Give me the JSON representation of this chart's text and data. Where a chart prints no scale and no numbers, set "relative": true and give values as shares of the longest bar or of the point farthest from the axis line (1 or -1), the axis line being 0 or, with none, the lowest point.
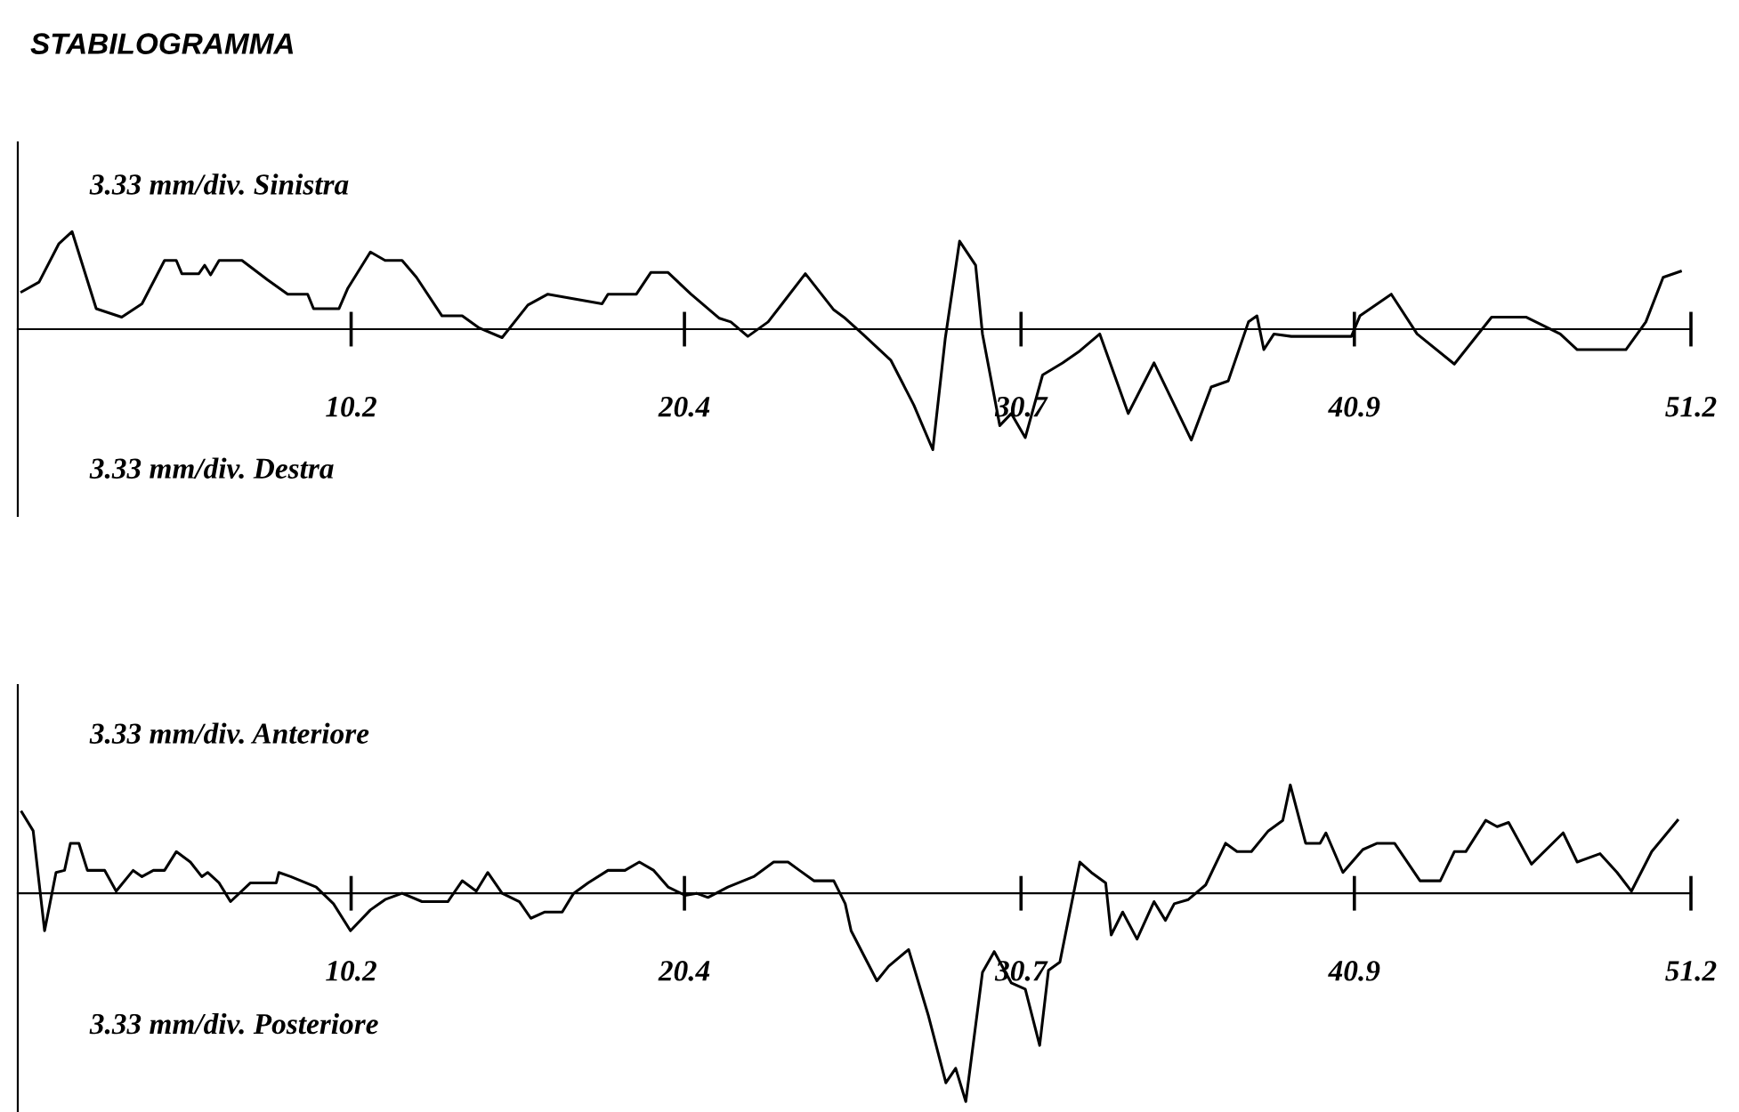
{
  "chart_data": [
    {
      "type": "line",
      "title": "STABILOGRAMMA",
      "relative": true,
      "xlim": [
        0,
        51.2
      ],
      "xticks": [
        10.2,
        20.4,
        30.7,
        40.9,
        51.2
      ],
      "marker": "none",
      "line_style": "solid",
      "annotations": [
        "3.33 mm/div. Sinistra",
        "3.33 mm/div. Destra"
      ],
      "series": [
        {
          "color": "#000000",
          "x": [
            0.12,
            0.65,
            1.26,
            1.66,
            2.4,
            3.18,
            3.8,
            4.49,
            4.85,
            5.02,
            5.54,
            5.72,
            5.9,
            6.16,
            6.86,
            7.64,
            8.26,
            8.87,
            9.05,
            9.83,
            10.1,
            10.79,
            11.24,
            11.76,
            12.2,
            12.98,
            13.6,
            14.12,
            14.82,
            15.61,
            16.22,
            17.88,
            18.06,
            18.93,
            19.37,
            19.9,
            20.6,
            21.47,
            21.82,
            22.34,
            22.96,
            23.39,
            24.1,
            24.97,
            25.32,
            25.85,
            26.72,
            27.42,
            28.0,
            28.38,
            28.82,
            29.31,
            29.52,
            30.05,
            30.4,
            30.83,
            31.36,
            31.97,
            32.5,
            33.11,
            33.98,
            34.77,
            35.91,
            36.52,
            37.04,
            37.66,
            37.92,
            38.13,
            38.44,
            38.97,
            40.81,
            41.07,
            42.03,
            42.82,
            43.96,
            45.1,
            46.15,
            47.2,
            47.72,
            49.21,
            49.82,
            50.35,
            50.88
          ],
          "values": [
            0.31,
            0.39,
            0.71,
            0.81,
            0.17,
            0.1,
            0.21,
            0.57,
            0.57,
            0.46,
            0.46,
            0.53,
            0.45,
            0.57,
            0.57,
            0.41,
            0.29,
            0.29,
            0.17,
            0.17,
            0.34,
            0.64,
            0.57,
            0.57,
            0.43,
            0.11,
            0.11,
            0.01,
            -0.07,
            0.2,
            0.29,
            0.21,
            0.29,
            0.29,
            0.47,
            0.47,
            0.29,
            0.09,
            0.06,
            -0.06,
            0.06,
            0.21,
            0.46,
            0.16,
            0.09,
            -0.04,
            -0.26,
            -0.63,
            -1.0,
            -0.08,
            0.73,
            0.53,
            -0.04,
            -0.8,
            -0.7,
            -0.9,
            -0.38,
            -0.28,
            -0.18,
            -0.04,
            -0.7,
            -0.28,
            -0.92,
            -0.48,
            -0.43,
            0.06,
            0.11,
            -0.17,
            -0.04,
            -0.06,
            -0.06,
            0.11,
            0.29,
            -0.04,
            -0.29,
            0.1,
            0.1,
            -0.04,
            -0.17,
            -0.17,
            0.06,
            0.43,
            0.48
          ]
        }
      ]
    },
    {
      "type": "line",
      "relative": true,
      "xlim": [
        0,
        51.2
      ],
      "xticks": [
        10.2,
        20.4,
        30.7,
        40.9,
        51.2
      ],
      "marker": "none",
      "line_style": "solid",
      "annotations": [
        "3.33 mm/div. Anteriore",
        "3.33 mm/div. Posteriore"
      ],
      "series": [
        {
          "color": "#000000",
          "x": [
            0.12,
            0.47,
            0.82,
            1.17,
            1.43,
            1.61,
            1.87,
            2.13,
            2.66,
            3.01,
            3.53,
            3.8,
            4.15,
            4.49,
            4.85,
            5.28,
            5.63,
            5.81,
            6.16,
            6.51,
            7.12,
            7.91,
            7.99,
            8.35,
            9.13,
            9.66,
            10.18,
            10.79,
            11.24,
            11.76,
            12.37,
            13.16,
            13.6,
            14.03,
            14.38,
            14.82,
            15.35,
            15.7,
            16.13,
            16.66,
            17.01,
            17.45,
            18.06,
            18.58,
            19.02,
            19.46,
            19.9,
            20.42,
            20.77,
            21.12,
            21.73,
            22.52,
            23.13,
            23.57,
            23.92,
            24.36,
            24.97,
            25.32,
            25.5,
            26.29,
            26.65,
            27.26,
            27.87,
            28.4,
            28.7,
            29.01,
            29.52,
            29.88,
            30.4,
            30.83,
            31.27,
            31.54,
            31.89,
            32.5,
            32.85,
            33.29,
            33.46,
            33.81,
            34.25,
            34.77,
            35.12,
            35.39,
            35.82,
            36.35,
            36.96,
            37.31,
            37.75,
            38.27,
            38.71,
            38.94,
            39.41,
            39.85,
            40.03,
            40.55,
            41.16,
            41.6,
            42.13,
            42.91,
            43.53,
            43.96,
            44.31,
            44.92,
            45.27,
            45.62,
            46.32,
            47.29,
            47.72,
            48.42,
            48.94,
            49.38,
            50.0,
            50.79
          ],
          "values": [
            0.39,
            0.3,
            -0.18,
            0.1,
            0.11,
            0.24,
            0.24,
            0.11,
            0.11,
            0.01,
            0.11,
            0.08,
            0.11,
            0.11,
            0.2,
            0.15,
            0.08,
            0.1,
            0.05,
            -0.04,
            0.05,
            0.05,
            0.1,
            0.08,
            0.03,
            -0.05,
            -0.18,
            -0.08,
            -0.03,
            0.0,
            -0.04,
            -0.04,
            0.06,
            0.01,
            0.1,
            0.0,
            -0.04,
            -0.12,
            -0.09,
            -0.09,
            0.0,
            0.05,
            0.11,
            0.11,
            0.15,
            0.11,
            0.03,
            -0.01,
            0.0,
            -0.02,
            0.03,
            0.08,
            0.15,
            0.15,
            0.11,
            0.06,
            0.06,
            -0.05,
            -0.18,
            -0.42,
            -0.35,
            -0.27,
            -0.59,
            -0.91,
            -0.84,
            -1.0,
            -0.38,
            -0.28,
            -0.43,
            -0.46,
            -0.73,
            -0.37,
            -0.33,
            0.15,
            0.1,
            0.05,
            -0.2,
            -0.09,
            -0.22,
            -0.04,
            -0.13,
            -0.05,
            -0.03,
            0.04,
            0.24,
            0.2,
            0.2,
            0.3,
            0.35,
            0.52,
            0.24,
            0.24,
            0.29,
            0.1,
            0.21,
            0.24,
            0.24,
            0.06,
            0.06,
            0.2,
            0.2,
            0.35,
            0.32,
            0.34,
            0.14,
            0.29,
            0.15,
            0.19,
            0.1,
            0.01,
            0.2,
            0.35
          ]
        }
      ]
    }
  ]
}
